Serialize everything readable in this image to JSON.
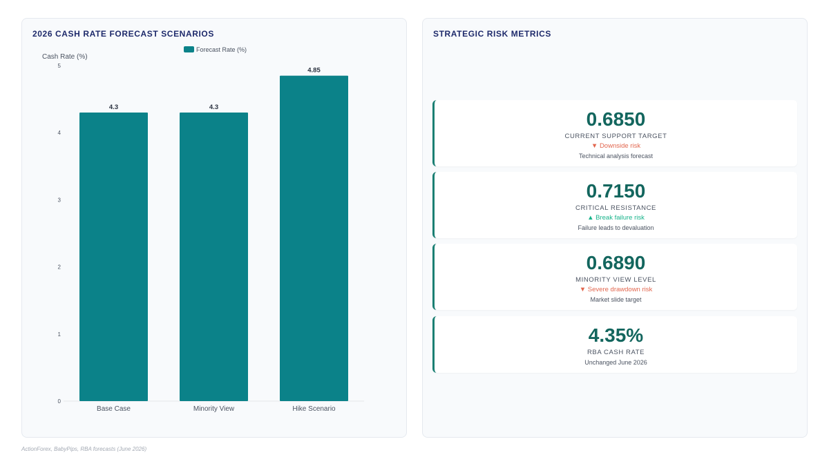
{
  "chart_panel": {
    "title": "2026 CASH RATE FORECAST SCENARIOS"
  },
  "chart_data": {
    "type": "bar",
    "categories": [
      "Base Case",
      "Minority View",
      "Hike Scenario"
    ],
    "series": [
      {
        "name": "Forecast Rate (%)",
        "values": [
          4.3,
          4.3,
          4.85
        ],
        "color": "#0b8289"
      }
    ],
    "data_labels": [
      "4.3",
      "4.3",
      "4.85"
    ],
    "ylabel": "Cash Rate (%)",
    "xlabel": "",
    "ylim": [
      0,
      5
    ],
    "yticks": [
      "0",
      "1",
      "2",
      "3",
      "4",
      "5"
    ],
    "grid": false,
    "legend": "top-center"
  },
  "risk_panel": {
    "title": "STRATEGIC RISK METRICS",
    "metrics": [
      {
        "value": "0.6850",
        "label": "CURRENT SUPPORT TARGET",
        "trend": "▼ Downside risk",
        "trend_dir": "down",
        "note": "Technical analysis forecast"
      },
      {
        "value": "0.7150",
        "label": "CRITICAL RESISTANCE",
        "trend": "▲ Break failure risk",
        "trend_dir": "up",
        "note": "Failure leads to devaluation"
      },
      {
        "value": "0.6890",
        "label": "MINORITY VIEW LEVEL",
        "trend": "▼ Severe drawdown risk",
        "trend_dir": "down",
        "note": "Market slide target"
      },
      {
        "value": "4.35%",
        "label": "RBA CASH RATE",
        "trend": "",
        "trend_dir": "",
        "note": "Unchanged June 2026"
      }
    ]
  },
  "source": "ActionForex, BabyPips, RBA forecasts (June 2026)",
  "colors": {
    "bar": "#0b8289",
    "accent": "#1a7f73",
    "title": "#1e2a6b",
    "trend_down": "#e2664e",
    "trend_up": "#17b38a"
  }
}
